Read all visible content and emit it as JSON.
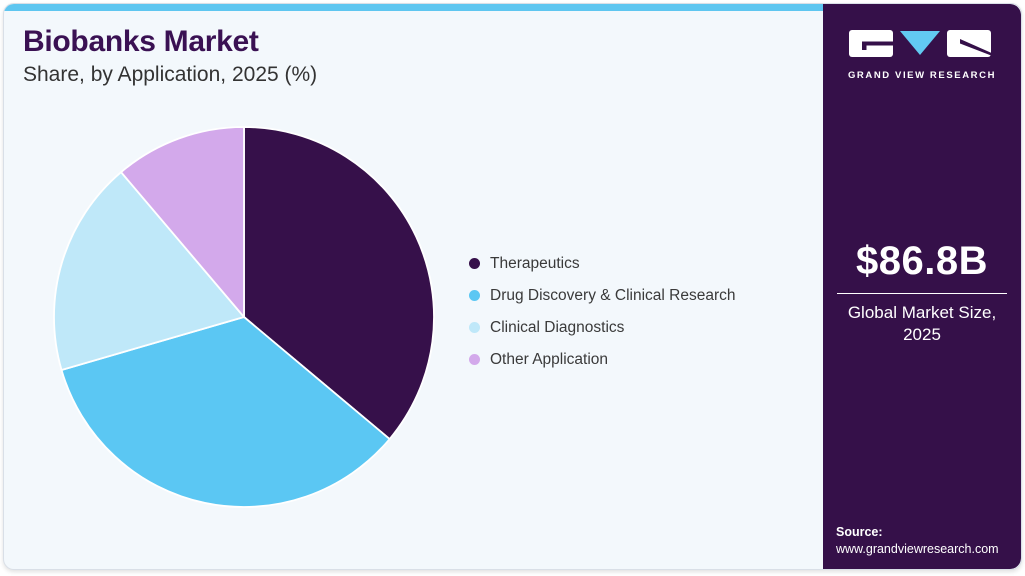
{
  "header": {
    "title": "Biobanks Market",
    "subtitle": "Share, by Application, 2025 (%)"
  },
  "brand": {
    "name": "GRAND VIEW RESEARCH"
  },
  "sidebar": {
    "market_size_value": "$86.8B",
    "market_size_label_line1": "Global Market Size,",
    "market_size_label_line2": "2025",
    "source_label": "Source:",
    "source_url": "www.grandviewresearch.com"
  },
  "chart_data": {
    "type": "pie",
    "title": "Biobanks Market Share, by Application, 2025 (%)",
    "categories": [
      "Therapeutics",
      "Drug Discovery & Clinical Research",
      "Clinical Diagnostics",
      "Other Application"
    ],
    "values": [
      36.1,
      34.4,
      18.3,
      11.2
    ],
    "unit": "%",
    "colors": [
      "#36104a",
      "#5bc7f3",
      "#bfe8f9",
      "#d3a9eb"
    ],
    "start_angle_deg": 0,
    "direction": "clockwise",
    "legend_position": "right",
    "slice_border_color": "#ffffff"
  },
  "theme": {
    "accent_bar": "#5ec6f0",
    "sidebar_bg": "#351049",
    "logo_triangle": "#62c9f2",
    "logo_glyph": "#351049"
  }
}
